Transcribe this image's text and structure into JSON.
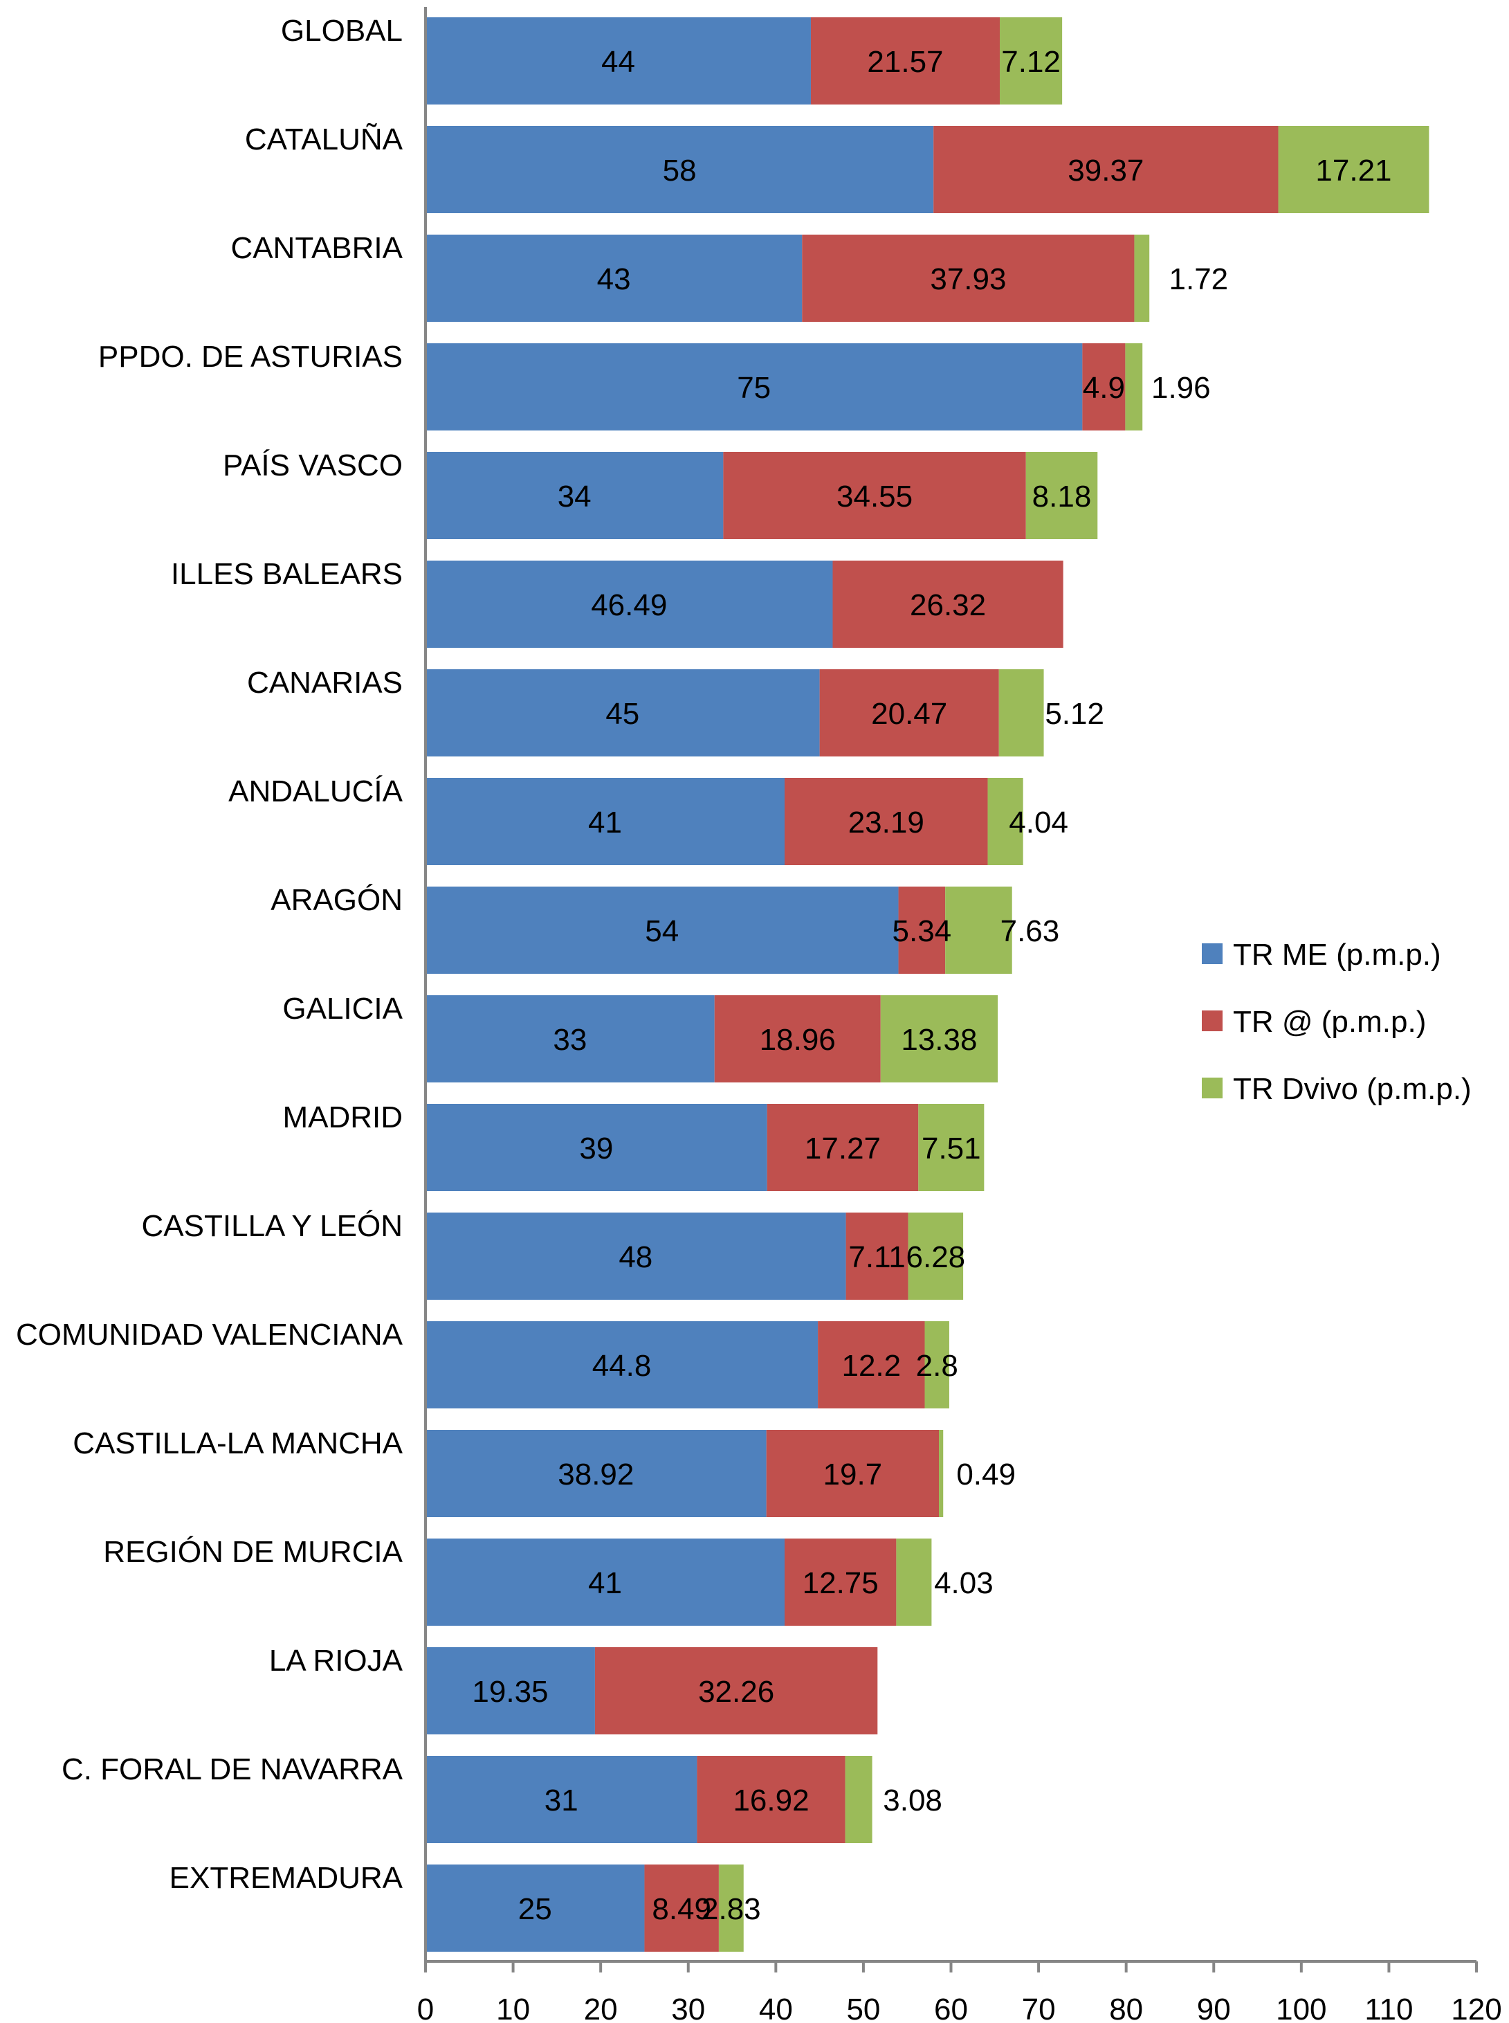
{
  "chart_data": {
    "type": "bar",
    "orientation": "horizontal",
    "stacked": true,
    "title": "",
    "xlabel": "",
    "ylabel": "",
    "xlim": [
      0,
      120
    ],
    "x_ticks": [
      0,
      10,
      20,
      30,
      40,
      50,
      60,
      70,
      80,
      90,
      100,
      110,
      120
    ],
    "grid": false,
    "legend_position": "right",
    "categories": [
      "GLOBAL",
      "CATALUÑA",
      "CANTABRIA",
      "PPDO. DE ASTURIAS",
      "PAÍS VASCO",
      "ILLES BALEARS",
      "CANARIAS",
      "ANDALUCÍA",
      "ARAGÓN",
      "GALICIA",
      "MADRID",
      "CASTILLA Y LEÓN",
      "COMUNIDAD VALENCIANA",
      "CASTILLA-LA MANCHA",
      "REGIÓN DE MURCIA",
      "LA RIOJA",
      "C. FORAL DE NAVARRA",
      "EXTREMADURA"
    ],
    "series": [
      {
        "name": "TR ME (p.m.p.)",
        "color": "#4F81BD",
        "values": [
          44,
          58,
          43,
          75,
          34,
          46.49,
          45,
          41,
          54,
          33,
          39,
          48,
          44.8,
          38.92,
          41,
          19.35,
          31,
          25
        ]
      },
      {
        "name": "TR @ (p.m.p.)",
        "color": "#C0504D",
        "values": [
          21.57,
          39.37,
          37.93,
          4.9,
          34.55,
          26.32,
          20.47,
          23.19,
          5.34,
          18.96,
          17.27,
          7.11,
          12.2,
          19.7,
          12.75,
          32.26,
          16.92,
          8.49
        ]
      },
      {
        "name": "TR Dvivo (p.m.p.)",
        "color": "#9BBB59",
        "values": [
          7.12,
          17.21,
          1.72,
          1.96,
          8.18,
          null,
          5.12,
          4.04,
          7.63,
          13.38,
          7.51,
          6.28,
          2.8,
          0.49,
          4.03,
          null,
          3.08,
          2.83
        ]
      }
    ]
  }
}
